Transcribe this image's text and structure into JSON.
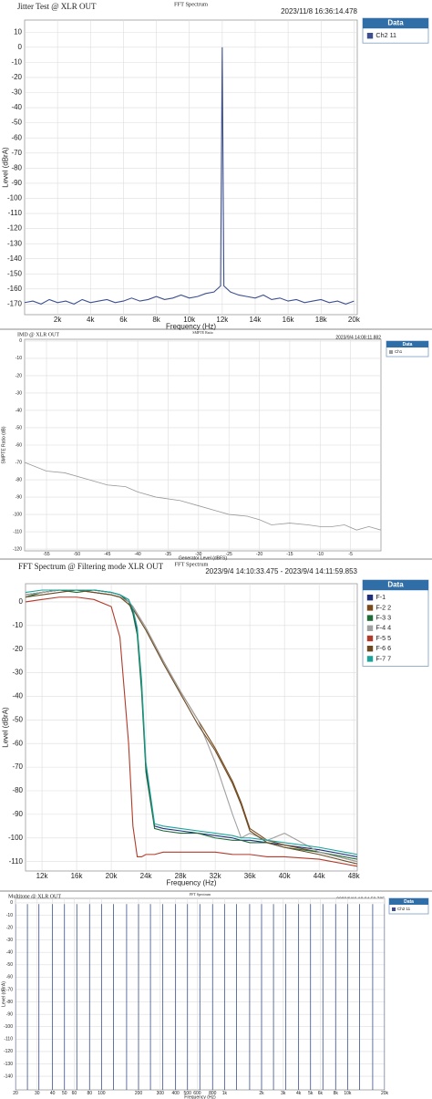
{
  "chart_data": [
    {
      "type": "line",
      "title": "Jitter Test @ XLR OUT",
      "subtitle": "FFT Spectrum",
      "timestamp": "2023/11/8 16:36:14.478",
      "xlabel": "Frequency (Hz)",
      "ylabel": "Level (dBrA)",
      "legend_title": "Data",
      "grid": true,
      "xlim": [
        0,
        20200
      ],
      "ylim": [
        -177,
        18
      ],
      "xticks": [
        {
          "value": 2000,
          "label": "2k"
        },
        {
          "value": 4000,
          "label": "4k"
        },
        {
          "value": 6000,
          "label": "6k"
        },
        {
          "value": 8000,
          "label": "8k"
        },
        {
          "value": 10000,
          "label": "10k"
        },
        {
          "value": 12000,
          "label": "12k"
        },
        {
          "value": 14000,
          "label": "14k"
        },
        {
          "value": 16000,
          "label": "16k"
        },
        {
          "value": 18000,
          "label": "18k"
        },
        {
          "value": 20000,
          "label": "20k"
        }
      ],
      "yticks": [
        10,
        0,
        -10,
        -20,
        -30,
        -40,
        -50,
        -60,
        -70,
        -80,
        -90,
        -100,
        -110,
        -120,
        -130,
        -140,
        -150,
        -160,
        -170
      ],
      "x": [
        0,
        500,
        1000,
        1500,
        2000,
        2500,
        3000,
        3500,
        4000,
        4500,
        5000,
        5500,
        6000,
        6500,
        7000,
        7500,
        8000,
        8500,
        9000,
        9500,
        10000,
        10500,
        11000,
        11500,
        11900,
        12000,
        12100,
        12500,
        13000,
        13500,
        14000,
        14500,
        15000,
        15500,
        16000,
        16500,
        17000,
        17500,
        18000,
        18500,
        19000,
        19500,
        20000
      ],
      "series": [
        {
          "name": "Ch2 11",
          "color": "#3c4f8f",
          "values": [
            -169,
            -168,
            -170,
            -167,
            -169,
            -168,
            -170,
            -167,
            -169,
            -168,
            -167,
            -169,
            -168,
            -166,
            -168,
            -167,
            -165,
            -167,
            -166,
            -164,
            -166,
            -165,
            -163,
            -162,
            -158,
            0,
            -158,
            -162,
            -164,
            -165,
            -166,
            -164,
            -167,
            -166,
            -168,
            -167,
            -169,
            -168,
            -167,
            -169,
            -168,
            -170,
            -168
          ]
        }
      ]
    },
    {
      "type": "line",
      "title": "IMD @ XLR OUT",
      "subtitle": "SMPTE Ratio",
      "timestamp": "2023/9/4 14:08:11.882",
      "xlabel": "Generator Level (dBFS)",
      "ylabel": "SMPTE Ratio (dB)",
      "legend_title": "Data",
      "grid": true,
      "xlim": [
        -58.6,
        0
      ],
      "ylim": [
        -121,
        1
      ],
      "xticks": [
        -55,
        -50,
        -45,
        -40,
        -35,
        -30,
        -25,
        -20,
        -15,
        -10,
        -5
      ],
      "yticks": [
        0,
        -10,
        -20,
        -30,
        -40,
        -50,
        -60,
        -70,
        -80,
        -90,
        -100,
        -110,
        -120
      ],
      "x": [
        -58.6,
        -55,
        -52,
        -48,
        -45,
        -42,
        -40,
        -37,
        -33,
        -30,
        -27,
        -25,
        -22,
        -20,
        -18,
        -15,
        -12,
        -10,
        -8,
        -6,
        -4,
        -2,
        0
      ],
      "series": [
        {
          "name": "Ch1",
          "color": "#999999",
          "values": [
            -70,
            -75,
            -76,
            -80,
            -83,
            -84,
            -87,
            -90,
            -92,
            -95,
            -98,
            -100,
            -101,
            -103,
            -106,
            -105,
            -106,
            -107,
            -107,
            -106,
            -109,
            -107,
            -109
          ]
        }
      ]
    },
    {
      "type": "line",
      "title": "FFT Spectrum @ Filtering mode XLR OUT",
      "subtitle": "FFT Spectrum",
      "timestamp": "2023/9/4 14:10:33.475 - 2023/9/4 14:11:59.853",
      "xlabel": "Frequency (Hz)",
      "ylabel": "Level (dBrA)",
      "legend_title": "Data",
      "grid": true,
      "xlim": [
        10100,
        48400
      ],
      "ylim": [
        -114,
        7.7
      ],
      "xticks": [
        {
          "value": 12000,
          "label": "12k"
        },
        {
          "value": 16000,
          "label": "16k"
        },
        {
          "value": 20000,
          "label": "20k"
        },
        {
          "value": 24000,
          "label": "24k"
        },
        {
          "value": 28000,
          "label": "28k"
        },
        {
          "value": 32000,
          "label": "32k"
        },
        {
          "value": 36000,
          "label": "36k"
        },
        {
          "value": 40000,
          "label": "40k"
        },
        {
          "value": 44000,
          "label": "44k"
        },
        {
          "value": 48000,
          "label": "48k"
        }
      ],
      "yticks": [
        0,
        -10,
        -20,
        -30,
        -40,
        -50,
        -60,
        -70,
        -80,
        -90,
        -100,
        -110
      ],
      "x": [
        10100,
        12000,
        14000,
        16000,
        18000,
        20000,
        21000,
        22000,
        22500,
        23000,
        23500,
        24000,
        25000,
        26000,
        28000,
        30000,
        32000,
        34000,
        35000,
        36000,
        38000,
        40000,
        44000,
        48400
      ],
      "series": [
        {
          "name": "F-1",
          "color": "#1f2f7a",
          "values": [
            3,
            4,
            5,
            5,
            5,
            4,
            3,
            1,
            -4,
            -12,
            -35,
            -70,
            -95,
            -96,
            -97,
            -98,
            -99,
            -100,
            -101,
            -101,
            -102,
            -103,
            -105,
            -108
          ]
        },
        {
          "name": "F-2 2",
          "color": "#7a4a1c",
          "values": [
            3,
            4,
            5,
            5,
            4,
            3,
            2,
            0,
            -2,
            -5,
            -8,
            -11,
            -18,
            -25,
            -38,
            -50,
            -62,
            -76,
            -85,
            -96,
            -101,
            -103,
            -106,
            -110
          ]
        },
        {
          "name": "F-3 3",
          "color": "#1f6b3a",
          "values": [
            2,
            4,
            5,
            4,
            5,
            4,
            3,
            0,
            -5,
            -14,
            -38,
            -72,
            -96,
            -97,
            -98,
            -98,
            -100,
            -101,
            -101,
            -102,
            -102,
            -104,
            -106,
            -109
          ]
        },
        {
          "name": "F-4 4",
          "color": "#a0a0a0",
          "values": [
            3,
            4,
            5,
            5,
            4,
            3,
            2,
            0,
            -2,
            -5,
            -8,
            -11,
            -18,
            -25,
            -38,
            -50,
            -68,
            -90,
            -100,
            -98,
            -101,
            -98,
            -106,
            -110
          ]
        },
        {
          "name": "F-5 5",
          "color": "#b23a2a",
          "values": [
            0,
            1,
            2,
            2,
            1,
            -2,
            -15,
            -60,
            -95,
            -108,
            -108,
            -107,
            -107,
            -106,
            -106,
            -106,
            -106,
            -107,
            -107,
            -107,
            -108,
            -108,
            -109,
            -112
          ]
        },
        {
          "name": "F-6 6",
          "color": "#6b4a22",
          "values": [
            2,
            3,
            4,
            5,
            4,
            3,
            2,
            -1,
            -3,
            -6,
            -9,
            -12,
            -19,
            -26,
            -39,
            -52,
            -63,
            -77,
            -86,
            -97,
            -102,
            -104,
            -107,
            -111
          ]
        },
        {
          "name": "F-7 7",
          "color": "#1aa39a",
          "values": [
            4,
            5,
            5,
            5,
            5,
            4,
            3,
            1,
            -3,
            -11,
            -33,
            -68,
            -94,
            -95,
            -96,
            -97,
            -98,
            -99,
            -100,
            -100,
            -101,
            -102,
            -104,
            -107
          ]
        }
      ]
    },
    {
      "type": "stem",
      "title": "Multitone @ XLR OUT",
      "subtitle": "FFT Spectrum",
      "timestamp": "2023/6/16 18:04:58.705",
      "xlabel": "Frequency (Hz)",
      "ylabel": "Level (dBrA)",
      "legend_title": "Data",
      "grid": true,
      "xscale": "log",
      "xlim": [
        20,
        20000
      ],
      "ylim": [
        -151,
        3.6
      ],
      "xticks": [
        20,
        30,
        40,
        50,
        60,
        80,
        100,
        200,
        300,
        400,
        500,
        600,
        800,
        {
          "value": 1000,
          "label": "1k"
        },
        {
          "value": 2000,
          "label": "2k"
        },
        {
          "value": 3000,
          "label": "3k"
        },
        {
          "value": 4000,
          "label": "4k"
        },
        {
          "value": 5000,
          "label": "5k"
        },
        {
          "value": 6000,
          "label": "6k"
        },
        {
          "value": 8000,
          "label": "8k"
        },
        {
          "value": 10000,
          "label": "10k"
        },
        {
          "value": 20000,
          "label": "20k"
        }
      ],
      "yticks": [
        0,
        -10,
        -20,
        -30,
        -40,
        -50,
        -60,
        -70,
        -80,
        -90,
        -100,
        -110,
        -120,
        -130,
        -140
      ],
      "x": [
        20,
        25,
        31,
        40,
        50,
        63,
        80,
        100,
        125,
        160,
        200,
        250,
        315,
        400,
        500,
        630,
        800,
        1000,
        1250,
        1600,
        2000,
        2500,
        3150,
        4000,
        5000,
        6300,
        8000,
        10000,
        12500,
        16000,
        20000
      ],
      "series": [
        {
          "name": "Ch2 11",
          "color": "#3c4f8f",
          "values": [
            -1,
            -1,
            -1,
            -1,
            -1,
            -1,
            -1,
            -1,
            -1,
            -1,
            -1,
            -1,
            -1,
            -1,
            -1,
            -1,
            -1,
            -1,
            -1,
            -1,
            -1,
            -1,
            -1,
            -1,
            -1,
            -1,
            -1,
            -1,
            -1,
            -1,
            -1
          ]
        }
      ]
    }
  ]
}
